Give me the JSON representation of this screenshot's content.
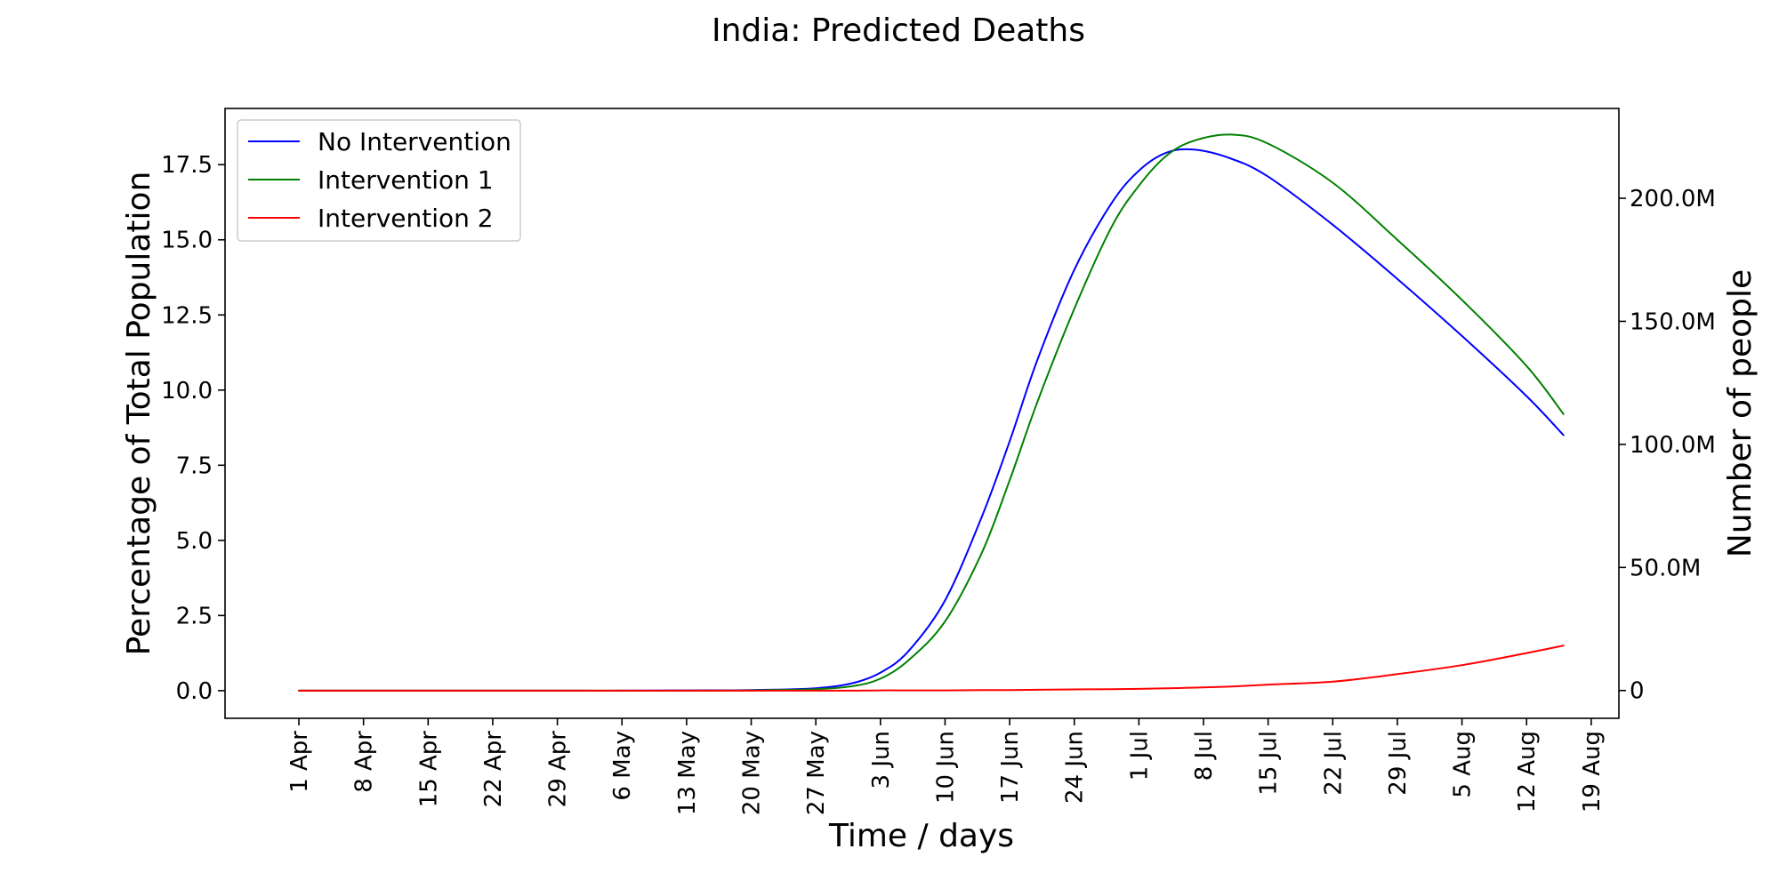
{
  "chart_data": {
    "type": "line",
    "title": "India: Predicted Deaths",
    "xlabel": "Time / days",
    "ylabel": "Percentage of Total Population",
    "y2label": "Number of people",
    "x_tick_labels": [
      "1 Apr",
      "8 Apr",
      "15 Apr",
      "22 Apr",
      "29 Apr",
      "6 May",
      "13 May",
      "20 May",
      "27 May",
      "3 Jun",
      "10 Jun",
      "17 Jun",
      "24 Jun",
      "1 Jul",
      "8 Jul",
      "15 Jul",
      "22 Jul",
      "29 Jul",
      "5 Aug",
      "12 Aug",
      "19 Aug"
    ],
    "y_ticks": [
      "0.0",
      "2.5",
      "5.0",
      "7.5",
      "10.0",
      "12.5",
      "15.0",
      "17.5"
    ],
    "y2_ticks": [
      "0",
      "50.0M",
      "100.0M",
      "150.0M",
      "200.0M"
    ],
    "ylim": [
      -0.92,
      19.37
    ],
    "y2lim": [
      -11.3,
      236.5
    ],
    "y2_unit": "million people",
    "xlim": [
      "2020-03-24",
      "2020-08-22"
    ],
    "grid": false,
    "legend_position": "top-left",
    "x": [
      "2020-04-01",
      "2020-04-08",
      "2020-04-15",
      "2020-04-22",
      "2020-04-29",
      "2020-05-06",
      "2020-05-13",
      "2020-05-20",
      "2020-05-27",
      "2020-05-31",
      "2020-06-03",
      "2020-06-06",
      "2020-06-10",
      "2020-06-14",
      "2020-06-17",
      "2020-06-20",
      "2020-06-24",
      "2020-06-28",
      "2020-07-01",
      "2020-07-04",
      "2020-07-07",
      "2020-07-11",
      "2020-07-15",
      "2020-07-22",
      "2020-07-29",
      "2020-08-05",
      "2020-08-12",
      "2020-08-16"
    ],
    "series": [
      {
        "name": "No Intervention",
        "color": "#0000ff",
        "values": [
          0.0,
          0.0,
          0.0,
          0.0,
          0.0,
          0.0,
          0.01,
          0.02,
          0.08,
          0.25,
          0.6,
          1.3,
          3.0,
          5.8,
          8.3,
          11.0,
          14.0,
          16.2,
          17.3,
          17.9,
          18.0,
          17.7,
          17.1,
          15.5,
          13.7,
          11.8,
          9.8,
          8.5
        ]
      },
      {
        "name": "Intervention 1",
        "color": "#008000",
        "values": [
          0.0,
          0.0,
          0.0,
          0.0,
          0.0,
          0.0,
          0.0,
          0.01,
          0.05,
          0.15,
          0.4,
          1.0,
          2.3,
          4.6,
          7.0,
          9.6,
          12.7,
          15.4,
          16.8,
          17.8,
          18.3,
          18.5,
          18.2,
          16.9,
          15.0,
          13.0,
          10.8,
          9.2
        ]
      },
      {
        "name": "Intervention 2",
        "color": "#ff0000",
        "values": [
          0.0,
          0.0,
          0.0,
          0.0,
          0.0,
          0.0,
          0.0,
          0.0,
          0.0,
          0.0,
          0.01,
          0.01,
          0.01,
          0.02,
          0.02,
          0.03,
          0.04,
          0.05,
          0.06,
          0.08,
          0.1,
          0.14,
          0.2,
          0.3,
          0.55,
          0.85,
          1.25,
          1.5
        ]
      }
    ]
  }
}
